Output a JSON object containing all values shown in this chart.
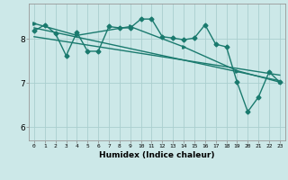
{
  "background_color": "#cce8e8",
  "line_color": "#1a7a6e",
  "grid_color": "#aacece",
  "xlabel": "Humidex (Indice chaleur)",
  "ylabel_ticks": [
    6,
    7,
    8
  ],
  "xlim": [
    -0.5,
    23.5
  ],
  "ylim": [
    5.7,
    8.8
  ],
  "x_ticks": [
    0,
    1,
    2,
    3,
    4,
    5,
    6,
    7,
    8,
    9,
    10,
    11,
    12,
    13,
    14,
    15,
    16,
    17,
    18,
    19,
    20,
    21,
    22,
    23
  ],
  "series1_x": [
    0,
    1,
    2,
    3,
    4,
    5,
    6,
    7,
    8,
    9,
    10,
    11,
    12,
    13,
    14,
    15,
    16,
    17,
    18,
    19,
    20,
    21,
    22,
    23
  ],
  "series1_y": [
    8.18,
    8.32,
    8.12,
    7.62,
    8.15,
    7.72,
    7.72,
    8.28,
    8.25,
    8.25,
    8.45,
    8.45,
    8.05,
    8.02,
    7.98,
    8.02,
    8.32,
    7.88,
    7.82,
    7.02,
    6.35,
    6.68,
    7.25,
    7.02
  ],
  "series2_x": [
    0,
    23
  ],
  "series2_y": [
    8.25,
    7.05
  ],
  "series3_x": [
    0,
    23
  ],
  "series3_y": [
    8.05,
    7.18
  ],
  "series4_x": [
    0,
    4,
    9,
    14,
    19,
    23
  ],
  "series4_y": [
    8.35,
    8.08,
    8.28,
    7.82,
    7.28,
    7.02
  ],
  "marker_size": 2.5,
  "linewidth": 1.0
}
